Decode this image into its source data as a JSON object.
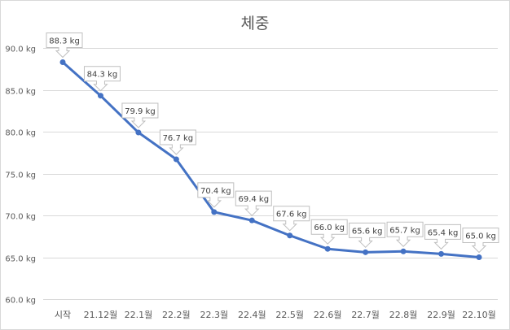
{
  "chart_data": {
    "type": "line",
    "title": "체중",
    "xlabel": "",
    "ylabel": "",
    "categories": [
      "시작",
      "21.12월",
      "22.1월",
      "22.2월",
      "22.3월",
      "22.4월",
      "22.5월",
      "22.6월",
      "22.7월",
      "22.8월",
      "22.9월",
      "22.10월"
    ],
    "series": [
      {
        "name": "체중",
        "color": "#4472c4",
        "values": [
          88.3,
          84.3,
          79.9,
          76.7,
          70.4,
          69.4,
          67.6,
          66.0,
          65.6,
          65.7,
          65.4,
          65.0
        ],
        "data_labels": [
          "88.3 kg",
          "84.3 kg",
          "79.9 kg",
          "76.7 kg",
          "70.4 kg",
          "69.4 kg",
          "67.6 kg",
          "66.0 kg",
          "65.6 kg",
          "65.7 kg",
          "65.4 kg",
          "65.0 kg"
        ]
      }
    ],
    "ylim": [
      60,
      90
    ],
    "yticks": [
      60,
      65,
      70,
      75,
      80,
      85,
      90
    ],
    "ytick_labels": [
      "60.0 kg",
      "65.0 kg",
      "70.0 kg",
      "75.0 kg",
      "80.0 kg",
      "85.0 kg",
      "90.0 kg"
    ],
    "grid": true,
    "legend": "none"
  }
}
